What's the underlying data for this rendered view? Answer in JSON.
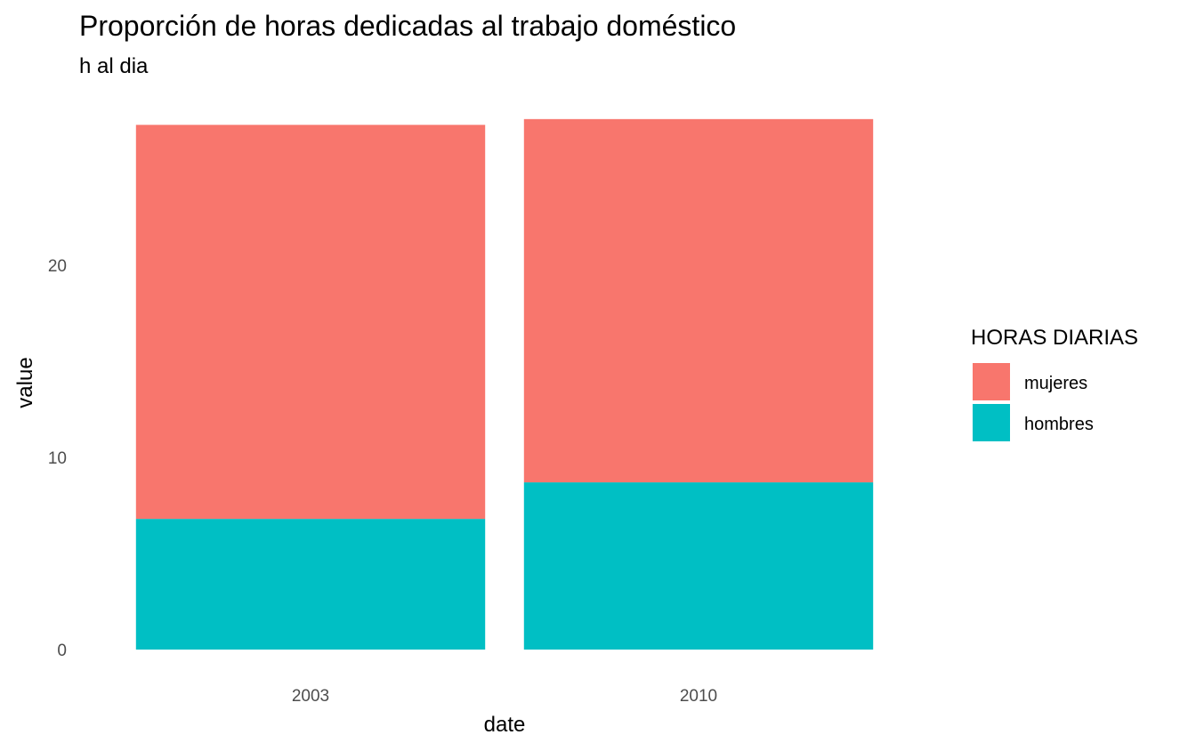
{
  "chart_data": {
    "type": "bar",
    "stacked": true,
    "title": "Proporción de horas dedicadas al trabajo doméstico",
    "subtitle": "h al dia",
    "xlabel": "date",
    "ylabel": "value",
    "categories": [
      "2003",
      "2010"
    ],
    "series": [
      {
        "name": "hombres",
        "values": [
          6.8,
          8.7
        ],
        "color": "#00BFC4"
      },
      {
        "name": "mujeres",
        "values": [
          20.5,
          18.9
        ],
        "color": "#F8766D"
      }
    ],
    "ylim": [
      0,
      27.6
    ],
    "yticks": [
      "0",
      "10",
      "20"
    ],
    "grid": false,
    "legend": {
      "title": "HORAS DIARIAS",
      "placement": "right",
      "entries": [
        {
          "label": "mujeres",
          "color": "#F8766D"
        },
        {
          "label": "hombres",
          "color": "#00BFC4"
        }
      ]
    }
  }
}
